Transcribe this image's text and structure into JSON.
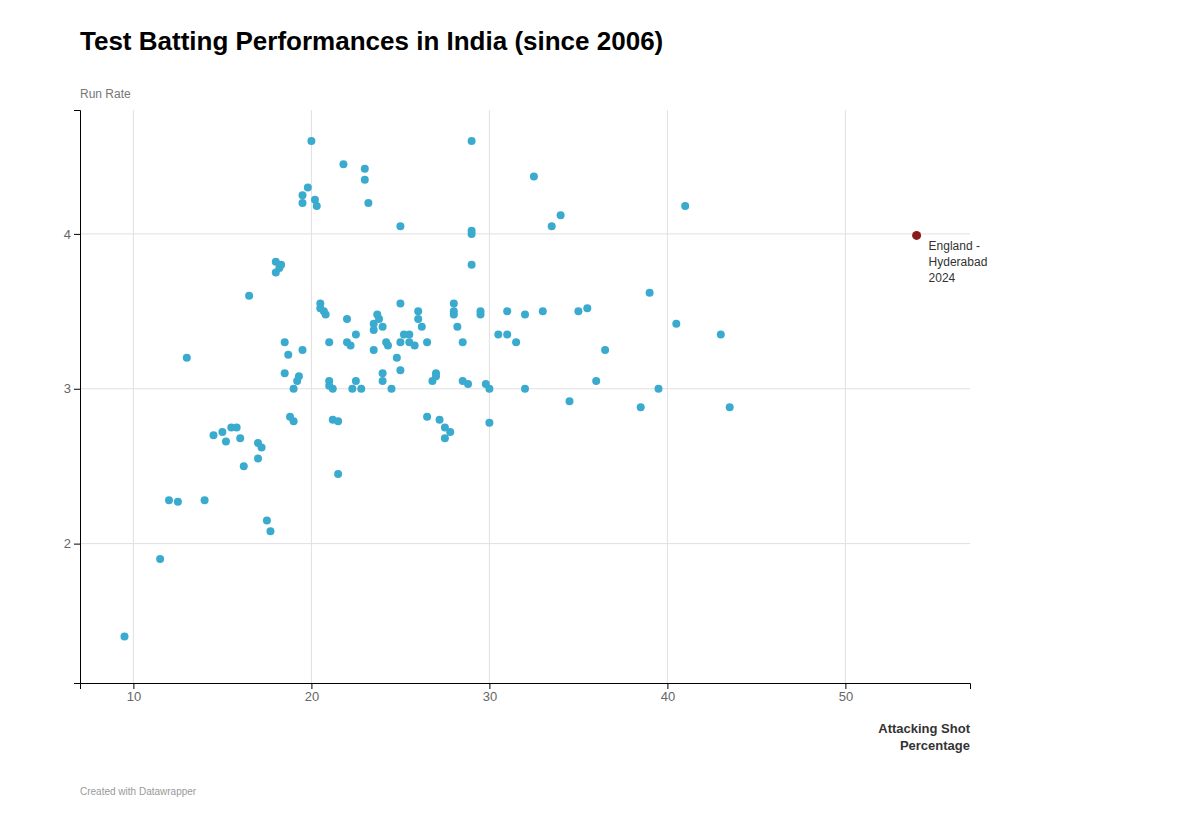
{
  "chart_data": {
    "type": "scatter",
    "title": "Test Batting Performances in India (since 2006)",
    "ylabel": "Run Rate",
    "xlabel": [
      "Attacking Shot",
      "Percentage"
    ],
    "credit": "Created with Datawrapper",
    "xlim": [
      7,
      57
    ],
    "ylim": [
      1.1,
      4.8
    ],
    "xticks": [
      10,
      20,
      30,
      40,
      50
    ],
    "yticks": [
      2,
      3,
      4
    ],
    "grid": true,
    "series": [
      {
        "color": "#3aabcf",
        "x": [
          9.5,
          11.5,
          12.0,
          12.5,
          13.0,
          14.0,
          14.5,
          15.0,
          15.2,
          15.5,
          15.8,
          16.0,
          16.2,
          16.5,
          17.0,
          17.0,
          17.2,
          17.5,
          17.7,
          18.0,
          18.0,
          18.2,
          18.3,
          18.5,
          18.5,
          18.7,
          18.8,
          19.0,
          19.0,
          19.2,
          19.3,
          19.5,
          19.5,
          19.5,
          19.8,
          20.0,
          20.2,
          20.3,
          20.5,
          20.5,
          20.7,
          20.8,
          21.0,
          21.0,
          21.0,
          21.2,
          21.2,
          21.5,
          21.5,
          21.8,
          22.0,
          22.0,
          22.2,
          22.3,
          22.5,
          22.5,
          22.8,
          23.0,
          23.0,
          23.2,
          23.5,
          23.5,
          23.5,
          23.7,
          23.8,
          24.0,
          24.0,
          24.0,
          24.2,
          24.3,
          24.5,
          24.8,
          25.0,
          25.0,
          25.0,
          25.0,
          25.2,
          25.5,
          25.5,
          25.8,
          26.0,
          26.0,
          26.2,
          26.5,
          26.5,
          26.8,
          27.0,
          27.0,
          27.2,
          27.5,
          27.5,
          27.8,
          28.0,
          28.0,
          28.0,
          28.2,
          28.5,
          28.5,
          28.8,
          29.0,
          29.0,
          29.0,
          29.0,
          29.5,
          29.5,
          29.8,
          30.0,
          30.0,
          30.5,
          31.0,
          31.0,
          31.5,
          32.0,
          32.0,
          32.5,
          33.0,
          33.5,
          34.0,
          34.5,
          35.0,
          35.5,
          36.0,
          36.5,
          38.5,
          39.0,
          39.5,
          40.5,
          41.0,
          43.0,
          43.5
        ],
        "values": [
          1.4,
          1.9,
          2.28,
          2.27,
          3.2,
          2.28,
          2.7,
          2.72,
          2.66,
          2.75,
          2.75,
          2.68,
          2.5,
          3.6,
          2.55,
          2.65,
          2.62,
          2.15,
          2.08,
          3.75,
          3.82,
          3.78,
          3.8,
          3.3,
          3.1,
          3.22,
          2.82,
          2.79,
          3.0,
          3.05,
          3.08,
          3.25,
          4.2,
          4.25,
          4.3,
          4.6,
          4.22,
          4.18,
          3.55,
          3.52,
          3.5,
          3.48,
          3.3,
          3.05,
          3.02,
          3.0,
          2.8,
          2.79,
          2.45,
          4.45,
          3.45,
          3.3,
          3.28,
          3.0,
          3.35,
          3.05,
          3.0,
          4.42,
          4.35,
          4.2,
          3.38,
          3.42,
          3.25,
          3.48,
          3.45,
          3.4,
          3.1,
          3.05,
          3.3,
          3.28,
          3.0,
          3.2,
          4.05,
          3.55,
          3.3,
          3.12,
          3.35,
          3.35,
          3.3,
          3.28,
          3.5,
          3.45,
          3.4,
          3.3,
          2.82,
          3.05,
          3.1,
          3.08,
          2.8,
          2.75,
          2.68,
          2.72,
          3.5,
          3.55,
          3.48,
          3.4,
          3.3,
          3.05,
          3.03,
          4.6,
          4.02,
          4.0,
          3.8,
          3.5,
          3.48,
          3.03,
          3.0,
          2.78,
          3.35,
          3.5,
          3.35,
          3.3,
          3.48,
          3.0,
          4.37,
          3.5,
          4.05,
          4.12,
          2.92,
          3.5,
          3.52,
          3.05,
          3.25,
          2.88,
          3.62,
          3.0,
          3.42,
          4.18,
          3.35,
          2.88
        ]
      },
      {
        "color": "#8B1A1A",
        "x": [
          54
        ],
        "values": [
          3.99
        ]
      }
    ],
    "annotations": [
      {
        "text": [
          "England -",
          "Hyderabad",
          "2024"
        ],
        "x": 54,
        "y": 3.99
      }
    ]
  }
}
